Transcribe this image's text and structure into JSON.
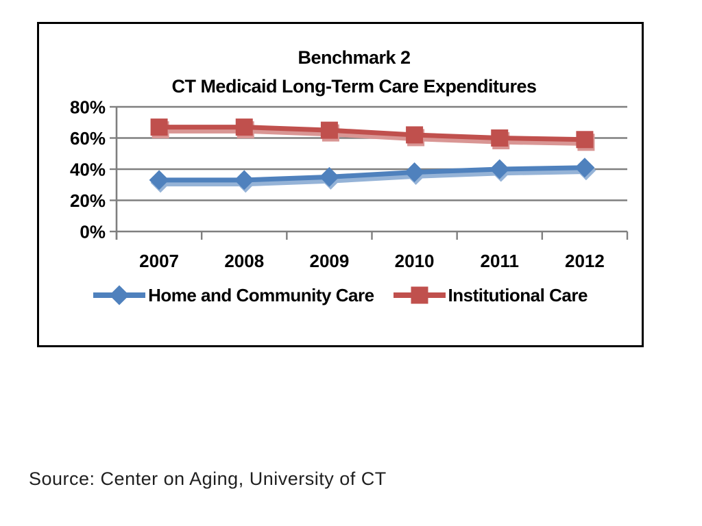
{
  "chart_data": {
    "type": "line",
    "title_line1": "Benchmark 2",
    "title_line2": "CT Medicaid Long-Term Care Expenditures",
    "categories": [
      "2007",
      "2008",
      "2009",
      "2010",
      "2011",
      "2012"
    ],
    "series": [
      {
        "name": "Home and Community Care",
        "marker": "diamond",
        "color": "#4F81BD",
        "ghost_color": "#95B3D7",
        "values": [
          33,
          33,
          35,
          38,
          40,
          41
        ]
      },
      {
        "name": "Institutional Care",
        "marker": "square",
        "color": "#C0504D",
        "ghost_color": "#D99694",
        "values": [
          67,
          67,
          65,
          62,
          60,
          59
        ]
      }
    ],
    "y_ticks": [
      {
        "label": "80%",
        "value": 80
      },
      {
        "label": "60%",
        "value": 60
      },
      {
        "label": "40%",
        "value": 40
      },
      {
        "label": "20%",
        "value": 20
      },
      {
        "label": "0%",
        "value": 0
      }
    ],
    "ylim": [
      0,
      80
    ],
    "grid": true,
    "legend_position": "bottom",
    "axis_color": "#7F7F7F",
    "text_color": "#000000"
  },
  "source": {
    "text": "Source: Center on Aging, University of CT"
  }
}
